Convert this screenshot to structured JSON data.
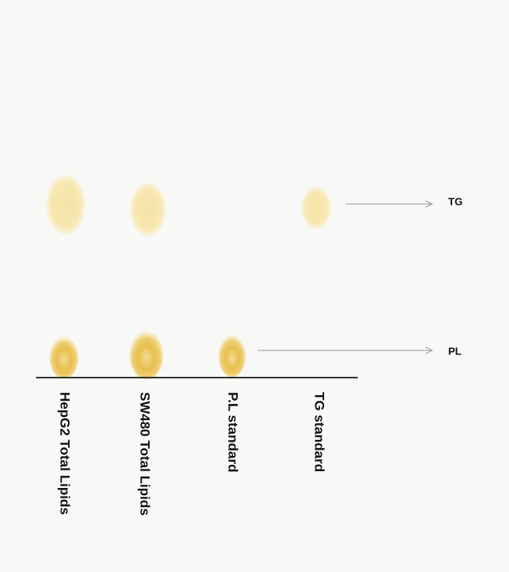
{
  "lanes": [
    {
      "label": "HepG2 Total Lipids"
    },
    {
      "label": "SW480 Total Lipids"
    },
    {
      "label": "P.L standard"
    },
    {
      "label": "TG standard"
    }
  ],
  "markers": [
    {
      "label": "TG"
    },
    {
      "label": "PL"
    }
  ]
}
